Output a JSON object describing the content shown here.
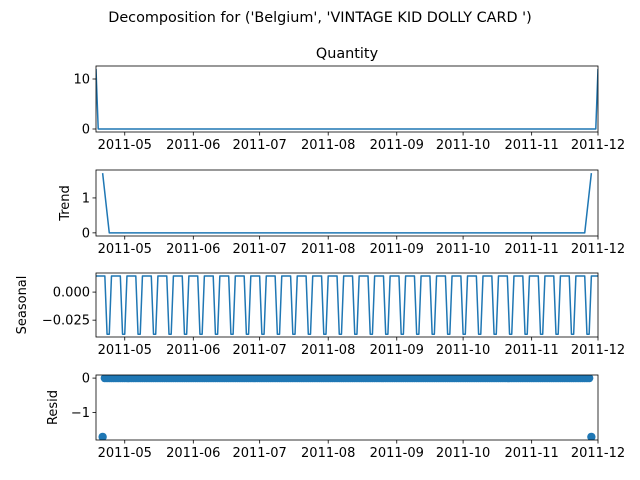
{
  "suptitle": "Decomposition for ('Belgium', 'VINTAGE KID DOLLY CARD ')",
  "colors": {
    "series": "#1f77b4"
  },
  "x_axis": {
    "type": "date",
    "range": [
      "2011-04-18",
      "2011-12-01"
    ],
    "ticks": [
      "2011-05-01",
      "2011-06-01",
      "2011-07-01",
      "2011-08-01",
      "2011-09-01",
      "2011-10-01",
      "2011-11-01",
      "2011-12-01"
    ],
    "tick_labels": [
      "2011-05",
      "2011-06",
      "2011-07",
      "2011-08",
      "2011-09",
      "2011-10",
      "2011-11",
      "2011-12"
    ]
  },
  "chart_data": [
    {
      "type": "line",
      "title": "Quantity",
      "ylabel": "",
      "ylim": [
        -0.6,
        12.6
      ],
      "yticks": [
        0,
        10
      ],
      "ytick_labels": [
        "0",
        "10"
      ],
      "x": [
        "2011-04-18",
        "2011-04-19",
        "2011-11-30",
        "2011-12-01"
      ],
      "values": [
        12,
        0,
        0,
        12
      ]
    },
    {
      "type": "line",
      "title": "",
      "ylabel": "Trend",
      "ylim": [
        -0.09,
        1.8
      ],
      "yticks": [
        0,
        1
      ],
      "ytick_labels": [
        "0",
        "1"
      ],
      "x": [
        "2011-04-21",
        "2011-04-24",
        "2011-11-25",
        "2011-11-28"
      ],
      "values": [
        1.71,
        0,
        0,
        1.71
      ]
    },
    {
      "type": "line",
      "title": "",
      "ylabel": "Seasonal",
      "ylim": [
        -0.04,
        0.017
      ],
      "yticks": [
        0,
        -0.025
      ],
      "ytick_labels": [
        "0.000",
        "−0.025"
      ],
      "period_days": 7,
      "pattern": [
        0.0143,
        0.0143,
        0.0143,
        0.0143,
        0.0143,
        -0.0375,
        -0.0375
      ],
      "x_start": "2011-04-18",
      "x_end": "2011-12-01"
    },
    {
      "type": "scatter",
      "title": "",
      "ylabel": "Resid",
      "ylim": [
        -1.8,
        0.09
      ],
      "yticks": [
        0,
        -1
      ],
      "ytick_labels": [
        "0",
        "−1"
      ],
      "points_start": "2011-04-21",
      "points_end": "2011-11-28",
      "baseline_value": 0,
      "outliers": [
        {
          "x": "2011-04-21",
          "y": -1.71
        },
        {
          "x": "2011-11-28",
          "y": -1.71
        }
      ]
    }
  ]
}
